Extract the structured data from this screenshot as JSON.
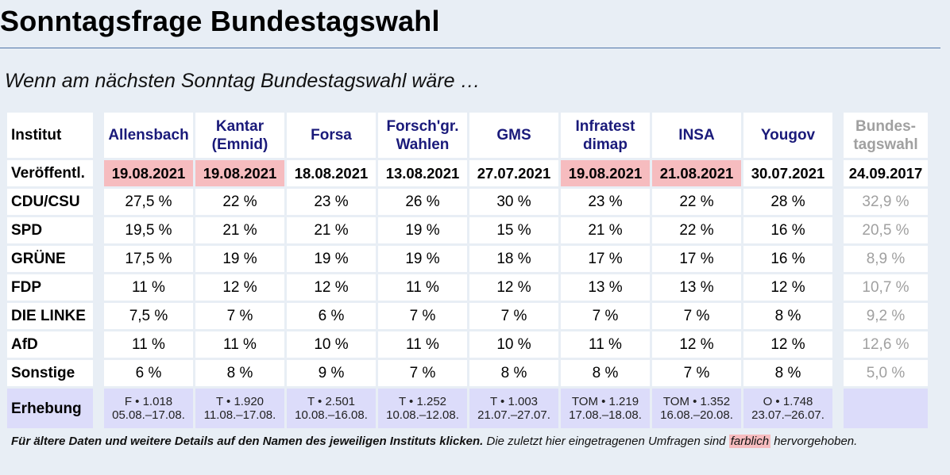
{
  "page": {
    "title": "Sonntagsfrage Bundestagswahl",
    "subtitle": "Wenn am nächsten Sonntag Bundestagswahl wäre …"
  },
  "table": {
    "corner_label": "Institut",
    "date_label": "Veröffentl.",
    "survey_label": "Erhebung",
    "institutes": [
      {
        "line1": "Allensbach",
        "line2": "",
        "date": "19.08.2021",
        "highlight": true,
        "survey_line1": "F • 1.018",
        "survey_line2": "05.08.–17.08."
      },
      {
        "line1": "Kantar",
        "line2": "(Emnid)",
        "date": "19.08.2021",
        "highlight": true,
        "survey_line1": "T • 1.920",
        "survey_line2": "11.08.–17.08."
      },
      {
        "line1": "Forsa",
        "line2": "",
        "date": "18.08.2021",
        "highlight": false,
        "survey_line1": "T • 2.501",
        "survey_line2": "10.08.–16.08."
      },
      {
        "line1": "Forsch'gr.",
        "line2": "Wahlen",
        "date": "13.08.2021",
        "highlight": false,
        "survey_line1": "T • 1.252",
        "survey_line2": "10.08.–12.08."
      },
      {
        "line1": "GMS",
        "line2": "",
        "date": "27.07.2021",
        "highlight": false,
        "survey_line1": "T • 1.003",
        "survey_line2": "21.07.–27.07."
      },
      {
        "line1": "Infratest",
        "line2": "dimap",
        "date": "19.08.2021",
        "highlight": true,
        "survey_line1": "TOM • 1.219",
        "survey_line2": "17.08.–18.08."
      },
      {
        "line1": "INSA",
        "line2": "",
        "date": "21.08.2021",
        "highlight": true,
        "survey_line1": "TOM • 1.352",
        "survey_line2": "16.08.–20.08."
      },
      {
        "line1": "Yougov",
        "line2": "",
        "date": "30.07.2021",
        "highlight": false,
        "survey_line1": "O • 1.748",
        "survey_line2": "23.07.–26.07."
      }
    ],
    "election": {
      "line1": "Bundes-",
      "line2": "tagswahl",
      "date": "24.09.2017"
    },
    "parties": [
      {
        "name": "CDU/CSU",
        "values": [
          "27,5 %",
          "22 %",
          "23 %",
          "26 %",
          "30 %",
          "23 %",
          "22 %",
          "28 %"
        ],
        "election": "32,9 %"
      },
      {
        "name": "SPD",
        "values": [
          "19,5 %",
          "21 %",
          "21 %",
          "19 %",
          "15 %",
          "21 %",
          "22 %",
          "16 %"
        ],
        "election": "20,5 %"
      },
      {
        "name": "GRÜNE",
        "values": [
          "17,5 %",
          "19 %",
          "19 %",
          "19 %",
          "18 %",
          "17 %",
          "17 %",
          "16 %"
        ],
        "election": "8,9 %"
      },
      {
        "name": "FDP",
        "values": [
          "11 %",
          "12 %",
          "12 %",
          "11 %",
          "12 %",
          "13 %",
          "13 %",
          "12 %"
        ],
        "election": "10,7 %"
      },
      {
        "name": "DIE LINKE",
        "values": [
          "7,5 %",
          "7 %",
          "6 %",
          "7 %",
          "7 %",
          "7 %",
          "7 %",
          "8 %"
        ],
        "election": "9,2 %"
      },
      {
        "name": "AfD",
        "values": [
          "11 %",
          "11 %",
          "10 %",
          "11 %",
          "10 %",
          "11 %",
          "12 %",
          "12 %"
        ],
        "election": "12,6 %"
      },
      {
        "name": "Sonstige",
        "values": [
          "6 %",
          "8 %",
          "9 %",
          "7 %",
          "8 %",
          "8 %",
          "7 %",
          "8 %"
        ],
        "election": "5,0 %"
      }
    ]
  },
  "footnote": {
    "bold_part": "Für ältere Daten und weitere Details auf den Namen des jeweiligen Instituts klicken.",
    "plain_part": " Die zuletzt hier eingetragenen Umfragen sind ",
    "marked_word": "farblich",
    "tail": " hervorgehoben."
  },
  "colors": {
    "background": "#e8eef5",
    "highlight": "#f6bcbf",
    "survey_row": "#dcdcfa",
    "institute_link": "#1a1a7a",
    "election_grey": "#a0a0a0"
  }
}
